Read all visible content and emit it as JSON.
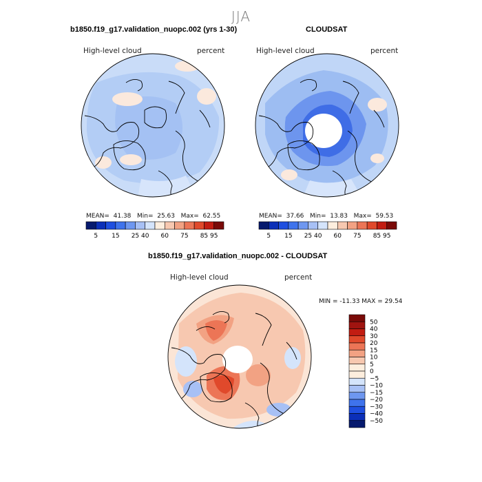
{
  "figure": {
    "season": "JJA",
    "colors": {
      "levels10": [
        "#061a6e",
        "#0b2fb8",
        "#1f4fe0",
        "#3f73ec",
        "#6e97f0",
        "#a7c0f5",
        "#d4e4fb",
        "#fdeede",
        "#f7c8b0",
        "#f2a283",
        "#ec7556",
        "#e0492b",
        "#c21d12",
        "#7a0a08"
      ],
      "levels13": [
        "#061a6e",
        "#0b2fb8",
        "#1f4fe0",
        "#3f73ec",
        "#6e97f0",
        "#a7c0f5",
        "#d4e4fb",
        "#fdeede",
        "#f7c8b0",
        "#f2a283",
        "#ec7556",
        "#e0492b",
        "#c21d12",
        "#7a0a08"
      ]
    }
  },
  "chart_data": [
    {
      "type": "heatmap",
      "projection": "north polar stereographic",
      "title": "b1850.f19_g17.validation_nuopc.002 (yrs 1-30)",
      "field": "High-level cloud",
      "units": "percent",
      "stats": {
        "mean_label": "MEAN=",
        "mean": "41.38",
        "min_label": "Min=",
        "min": "25.63",
        "max_label": "Max=",
        "max": "62.55"
      },
      "colorbar_ticks": [
        "5",
        "15",
        "25",
        "40",
        "60",
        "75",
        "85",
        "95"
      ]
    },
    {
      "type": "heatmap",
      "projection": "north polar stereographic",
      "title": "CLOUDSAT",
      "field": "High-level cloud",
      "units": "percent",
      "stats": {
        "mean_label": "MEAN=",
        "mean": "37.66",
        "min_label": "Min=",
        "min": "13.83",
        "max_label": "Max=",
        "max": "59.53"
      },
      "colorbar_ticks": [
        "5",
        "15",
        "25",
        "40",
        "60",
        "75",
        "85",
        "95"
      ]
    },
    {
      "type": "heatmap",
      "projection": "north polar stereographic",
      "title": "b1850.f19_g17.validation_nuopc.002 - CLOUDSAT",
      "field": "High-level cloud",
      "units": "percent",
      "stats_text": "MIN = -11.33 MAX =  29.54",
      "colorbar_ticks": [
        "50",
        "40",
        "30",
        "20",
        "15",
        "10",
        "5",
        "0",
        "−5",
        "−10",
        "−15",
        "−20",
        "−30",
        "−40",
        "−50"
      ]
    }
  ]
}
